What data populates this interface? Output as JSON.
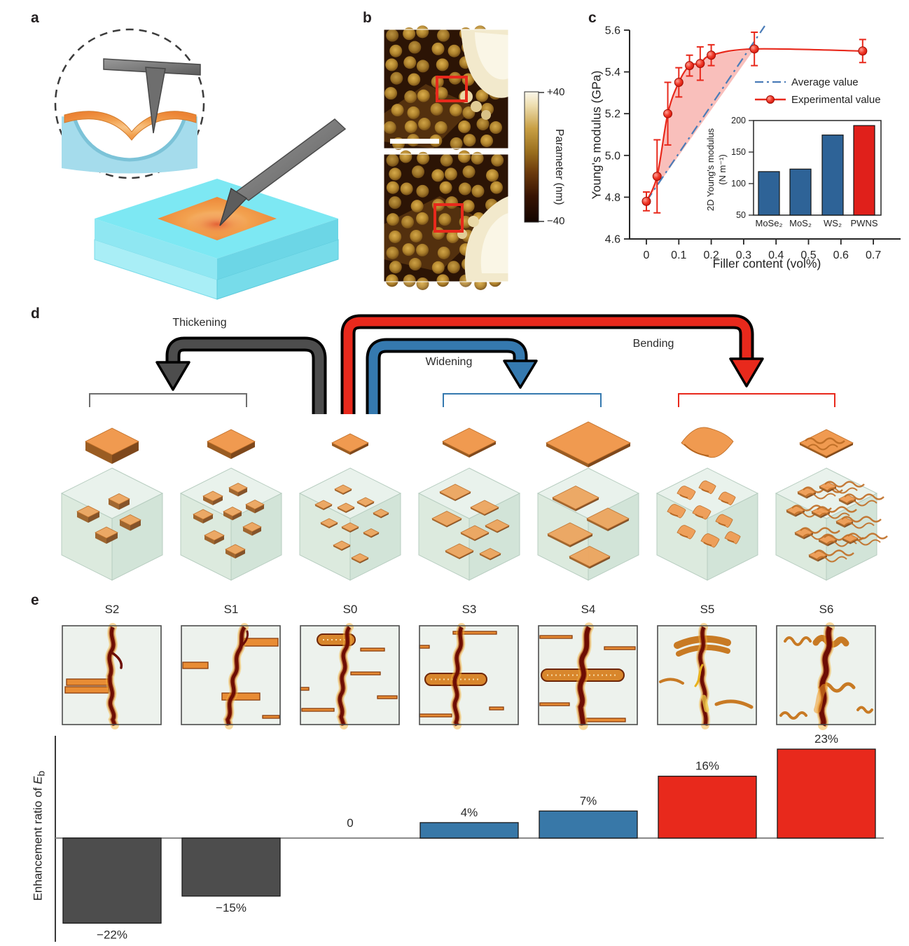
{
  "panels": {
    "a": {
      "label": "a"
    },
    "b": {
      "label": "b",
      "colorbar": {
        "top_label": "+40",
        "bottom_label": "−40",
        "title": "Parameter (nm)",
        "colors_top_to_bottom": [
          "#fbf7ea",
          "#c9a045",
          "#6b3a0c",
          "#120400"
        ]
      }
    },
    "c": {
      "label": "c"
    },
    "d": {
      "label": "d",
      "groups": [
        {
          "name": "thickening",
          "label": "Thickening",
          "color": "#4d4d4d",
          "bracket_color": "#6e6e6e"
        },
        {
          "name": "widening",
          "label": "Widening",
          "color": "#3579af",
          "bracket_color": "#3579af"
        },
        {
          "name": "bending",
          "label": "Bending",
          "color": "#e8291c",
          "bracket_color": "#e8291c"
        }
      ]
    },
    "e": {
      "label": "e",
      "sample_labels": [
        "S2",
        "S1",
        "S0",
        "S3",
        "S4",
        "S5",
        "S6"
      ]
    }
  },
  "chart_data": [
    {
      "id": "youngs_modulus_vs_filler",
      "type": "line",
      "xlabel": "Filler content (vol%)",
      "ylabel": "Young's modulus (GPa)",
      "xlim": [
        0,
        0.7
      ],
      "ylim": [
        4.6,
        5.6
      ],
      "xticks": [
        "0",
        "0.1",
        "0.2",
        "0.3",
        "0.4",
        "0.5",
        "0.6",
        "0.7"
      ],
      "yticks": [
        "4.6",
        "4.8",
        "5.0",
        "5.2",
        "5.4",
        "5.6"
      ],
      "grid": false,
      "legend_position": "upper right",
      "shaded_region_color": "#f8b8b4",
      "series": [
        {
          "name": "Average value",
          "style": "dash-dot",
          "color": "#4a7cb8",
          "points": [
            [
              0,
              4.78
            ],
            [
              0.365,
              5.62
            ]
          ]
        },
        {
          "name": "Experimental value",
          "style": "line-markers",
          "color": "#e8291c",
          "x": [
            0,
            0.033,
            0.066,
            0.1,
            0.133,
            0.166,
            0.2,
            0.333,
            0.667
          ],
          "y": [
            4.78,
            4.9,
            5.2,
            5.35,
            5.43,
            5.44,
            5.48,
            5.51,
            5.5
          ],
          "yerr": [
            0.045,
            0.175,
            0.15,
            0.07,
            0.05,
            0.08,
            0.05,
            0.08,
            0.055
          ]
        }
      ]
    },
    {
      "id": "2d_youngs_modulus_inset",
      "type": "bar",
      "categories": [
        "MoSe₂",
        "MoS₂",
        "WS₂",
        "PWNS"
      ],
      "values": [
        119,
        123,
        177,
        192
      ],
      "bar_colors": [
        "#2e6397",
        "#2e6397",
        "#2e6397",
        "#e0201b"
      ],
      "ylabel_line1": "2D Young's modulus",
      "ylabel_line2": "(N m⁻¹)",
      "yticks": [
        50,
        100,
        150,
        200
      ],
      "ylim": [
        50,
        200
      ]
    },
    {
      "id": "enhancement_ratio_of_Eb",
      "type": "bar",
      "categories": [
        "S2",
        "S1",
        "S0",
        "S3",
        "S4",
        "S5",
        "S6"
      ],
      "values": [
        -22,
        -15,
        0,
        4,
        7,
        16,
        23
      ],
      "labels": [
        "−22%",
        "−15%",
        "0",
        "4%",
        "7%",
        "16%",
        "23%"
      ],
      "bar_colors": [
        "#4d4d4d",
        "#4d4d4d",
        "none",
        "#3878a8",
        "#3878a8",
        "#e8291c",
        "#e8291c"
      ],
      "ylabel": "Enhancement ratio of ",
      "ylabel_var": "E",
      "ylabel_sub": "b"
    }
  ]
}
